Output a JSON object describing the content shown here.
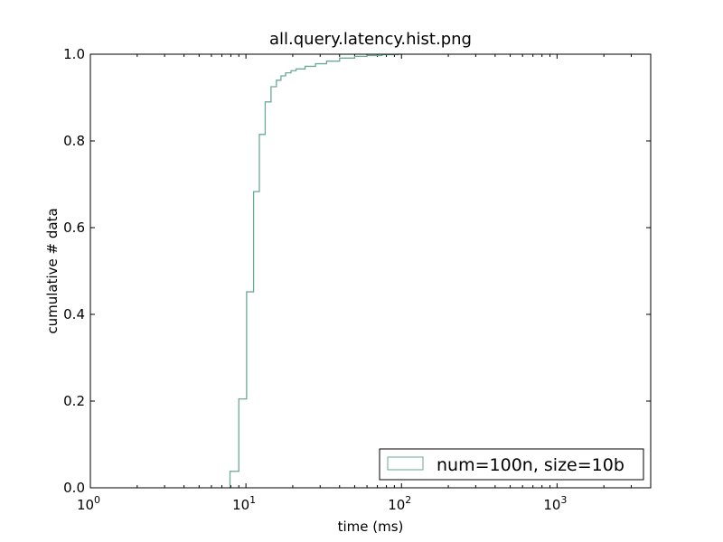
{
  "chart_data": {
    "type": "line",
    "title": "all.query.latency.hist.png",
    "xlabel": "time (ms)",
    "ylabel": "cumulative # data",
    "xscale": "log",
    "xlim": [
      1,
      4000
    ],
    "ylim": [
      0.0,
      1.0
    ],
    "grid": false,
    "legend_position": "lower-right",
    "xticks": [
      {
        "value": 1,
        "base": "10",
        "exp": "0"
      },
      {
        "value": 10,
        "base": "10",
        "exp": "1"
      },
      {
        "value": 100,
        "base": "10",
        "exp": "2"
      },
      {
        "value": 1000,
        "base": "10",
        "exp": "3"
      }
    ],
    "yticks": [
      {
        "value": 0.0,
        "label": "0.0"
      },
      {
        "value": 0.2,
        "label": "0.2"
      },
      {
        "value": 0.4,
        "label": "0.4"
      },
      {
        "value": 0.6,
        "label": "0.6"
      },
      {
        "value": 0.8,
        "label": "0.8"
      },
      {
        "value": 1.0,
        "label": "1.0"
      }
    ],
    "series": [
      {
        "name": "num=100n, size=10b",
        "color": "#6aaa96",
        "style": "step",
        "points": [
          [
            7.9,
            0.0
          ],
          [
            7.9,
            0.038
          ],
          [
            9.0,
            0.038
          ],
          [
            9.0,
            0.205
          ],
          [
            10.1,
            0.205
          ],
          [
            10.1,
            0.452
          ],
          [
            11.2,
            0.452
          ],
          [
            11.2,
            0.683
          ],
          [
            12.2,
            0.683
          ],
          [
            12.2,
            0.815
          ],
          [
            13.3,
            0.815
          ],
          [
            13.3,
            0.89
          ],
          [
            14.5,
            0.89
          ],
          [
            14.5,
            0.925
          ],
          [
            15.7,
            0.925
          ],
          [
            15.7,
            0.94
          ],
          [
            16.8,
            0.94
          ],
          [
            16.8,
            0.95
          ],
          [
            18.0,
            0.95
          ],
          [
            18.0,
            0.957
          ],
          [
            19.5,
            0.957
          ],
          [
            19.5,
            0.962
          ],
          [
            21.0,
            0.962
          ],
          [
            21.0,
            0.966
          ],
          [
            24.0,
            0.966
          ],
          [
            24.0,
            0.972
          ],
          [
            28.0,
            0.972
          ],
          [
            28.0,
            0.978
          ],
          [
            33.0,
            0.978
          ],
          [
            33.0,
            0.984
          ],
          [
            40.0,
            0.984
          ],
          [
            40.0,
            0.991
          ],
          [
            50.0,
            0.991
          ],
          [
            50.0,
            0.995
          ],
          [
            60.0,
            0.995
          ],
          [
            60.0,
            0.997
          ],
          [
            75.0,
            0.997
          ],
          [
            75.0,
            0.999
          ],
          [
            95.0,
            0.999
          ],
          [
            95.0,
            1.0
          ],
          [
            100.0,
            1.0
          ]
        ]
      }
    ]
  }
}
